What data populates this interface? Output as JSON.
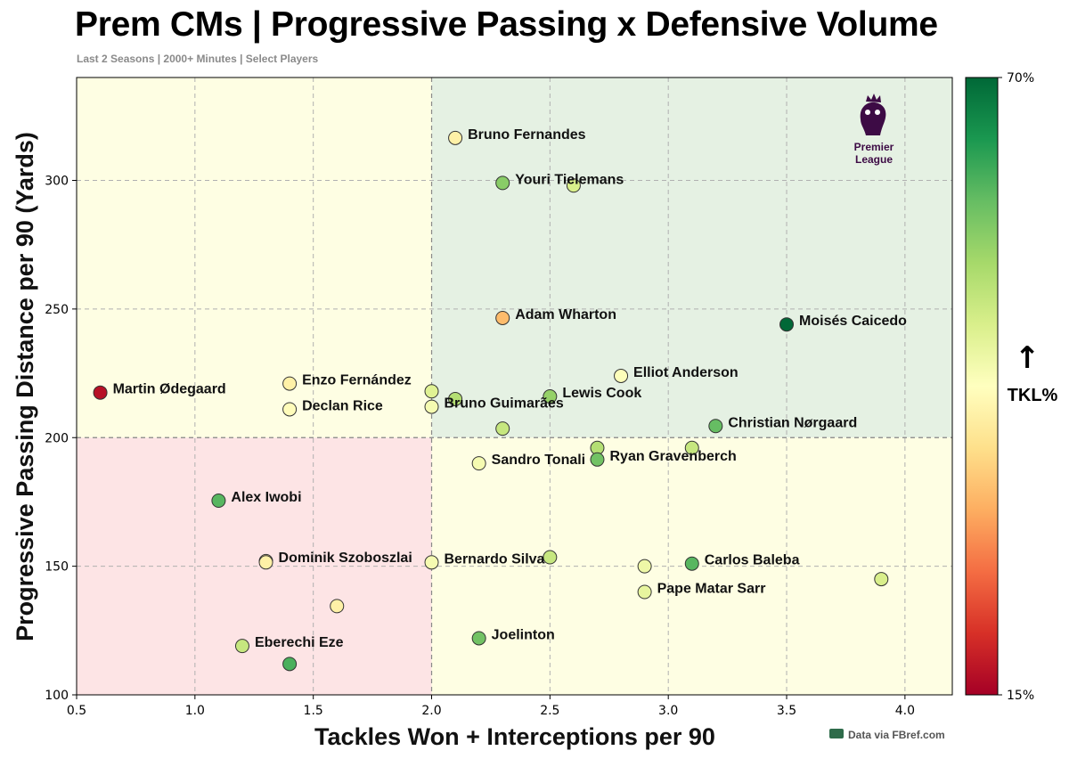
{
  "chart_data": {
    "type": "scatter",
    "title": "Prem CMs | Progressive Passing x Defensive Volume",
    "subtitle": "Last 2 Seasons | 2000+ Minutes | Select Players",
    "xlabel": "Tackles Won + Interceptions per 90",
    "ylabel": "Progressive Passing Distance per 90 (Yards)",
    "xlim": [
      0.5,
      4.2
    ],
    "ylim": [
      100,
      340
    ],
    "xticks": [
      "0.5",
      "1.0",
      "1.5",
      "2.0",
      "2.5",
      "3.0",
      "3.5",
      "4.0"
    ],
    "yticks": [
      "100",
      "150",
      "200",
      "250",
      "300"
    ],
    "quadrant_split": {
      "x": 2.0,
      "y": 200
    },
    "grid": true,
    "colorbar": {
      "label": "TKL%",
      "arrow": "↑",
      "min_label": "15%",
      "max_label": "70%",
      "min": 15,
      "max": 70,
      "position": "right"
    },
    "logo_text": [
      "Premier",
      "League"
    ],
    "source": "Data via FBref.com",
    "points": [
      {
        "x": 2.1,
        "y": 316.5,
        "tkl": 40,
        "label": "Bruno Fernandes"
      },
      {
        "x": 2.3,
        "y": 299,
        "tkl": 56,
        "label": "Youri Tielemans"
      },
      {
        "x": 2.6,
        "y": 298,
        "tkl": 48,
        "label": ""
      },
      {
        "x": 2.3,
        "y": 246.5,
        "tkl": 33,
        "label": "Adam Wharton"
      },
      {
        "x": 3.5,
        "y": 244,
        "tkl": 70,
        "label": "Moisés Caicedo"
      },
      {
        "x": 0.6,
        "y": 217.5,
        "tkl": 17,
        "label": "Martin Ødegaard"
      },
      {
        "x": 1.4,
        "y": 221,
        "tkl": 40,
        "label": "Enzo Fernández"
      },
      {
        "x": 1.4,
        "y": 211,
        "tkl": 42,
        "label": "Declan Rice"
      },
      {
        "x": 2.0,
        "y": 218,
        "tkl": 47,
        "label": ""
      },
      {
        "x": 2.1,
        "y": 215,
        "tkl": 52,
        "label": ""
      },
      {
        "x": 2.0,
        "y": 212,
        "tkl": 44,
        "label": "Bruno Guimarães"
      },
      {
        "x": 2.5,
        "y": 216,
        "tkl": 55,
        "label": "Lewis Cook"
      },
      {
        "x": 2.8,
        "y": 224,
        "tkl": 43,
        "label": "Elliot Anderson"
      },
      {
        "x": 3.2,
        "y": 204.5,
        "tkl": 59,
        "label": "Christian Nørgaard"
      },
      {
        "x": 2.3,
        "y": 203.5,
        "tkl": 50,
        "label": ""
      },
      {
        "x": 2.7,
        "y": 196,
        "tkl": 52,
        "label": ""
      },
      {
        "x": 2.7,
        "y": 191.5,
        "tkl": 58,
        "label": "Ryan Gravenberch"
      },
      {
        "x": 3.1,
        "y": 196,
        "tkl": 50,
        "label": ""
      },
      {
        "x": 2.2,
        "y": 190,
        "tkl": 44,
        "label": "Sandro Tonali"
      },
      {
        "x": 1.1,
        "y": 175.5,
        "tkl": 60,
        "label": "Alex Iwobi"
      },
      {
        "x": 1.3,
        "y": 152,
        "tkl": 38,
        "label": "Dominik Szoboszlai"
      },
      {
        "x": 1.3,
        "y": 151.5,
        "tkl": 40,
        "label": ""
      },
      {
        "x": 2.0,
        "y": 151.5,
        "tkl": 44,
        "label": "Bernardo Silva"
      },
      {
        "x": 2.5,
        "y": 153.5,
        "tkl": 50,
        "label": ""
      },
      {
        "x": 2.9,
        "y": 150,
        "tkl": 45,
        "label": ""
      },
      {
        "x": 3.1,
        "y": 151,
        "tkl": 60,
        "label": "Carlos Baleba"
      },
      {
        "x": 3.9,
        "y": 145,
        "tkl": 48,
        "label": ""
      },
      {
        "x": 2.9,
        "y": 140,
        "tkl": 46,
        "label": "Pape Matar Sarr"
      },
      {
        "x": 1.6,
        "y": 134.5,
        "tkl": 40,
        "label": ""
      },
      {
        "x": 1.2,
        "y": 119,
        "tkl": 50,
        "label": "Eberechi Eze"
      },
      {
        "x": 2.2,
        "y": 122,
        "tkl": 58,
        "label": "Joelinton"
      },
      {
        "x": 1.4,
        "y": 112,
        "tkl": 61,
        "label": ""
      }
    ]
  }
}
